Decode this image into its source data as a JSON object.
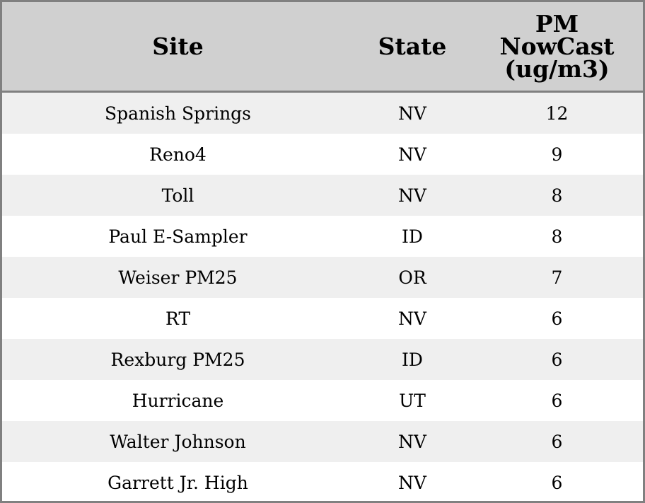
{
  "columns": [
    "Site",
    "State",
    "PM NowCast (ug/m3)"
  ],
  "rows": [
    {
      "site": "Spanish Springs",
      "state": "NV",
      "pm": "12"
    },
    {
      "site": "Reno4",
      "state": "NV",
      "pm": "9"
    },
    {
      "site": "Toll",
      "state": "NV",
      "pm": "8"
    },
    {
      "site": "Paul E-Sampler",
      "state": "ID",
      "pm": "8"
    },
    {
      "site": "Weiser PM25",
      "state": "OR",
      "pm": "7"
    },
    {
      "site": "RT",
      "state": "NV",
      "pm": "6"
    },
    {
      "site": "Rexburg PM25",
      "state": "ID",
      "pm": "6"
    },
    {
      "site": "Hurricane",
      "state": "UT",
      "pm": "6"
    },
    {
      "site": "Walter Johnson",
      "state": "NV",
      "pm": "6"
    },
    {
      "site": "Garrett Jr. High",
      "state": "NV",
      "pm": "6"
    }
  ]
}
